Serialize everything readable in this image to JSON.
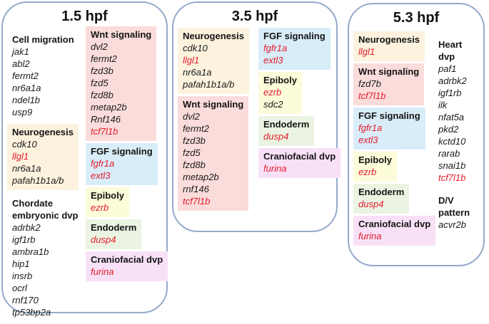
{
  "colors": {
    "red_gene": "#e31b2c",
    "panel_border": "#94abc8",
    "cream": "#fcf2de",
    "pink": "#fadcda",
    "blue": "#d9edf8",
    "yellow": "#fdfcda",
    "green": "#ebf4e2",
    "magenta": "#f8e1f6"
  },
  "panels": [
    {
      "title": "1.5 hpf",
      "columns": [
        [
          {
            "label": "Cell migration",
            "bg": null,
            "genes": [
              {
                "name": "jak1",
                "red": false
              },
              {
                "name": "abl2",
                "red": false
              },
              {
                "name": "fermt2",
                "red": false
              },
              {
                "name": "nr6a1a",
                "red": false
              },
              {
                "name": "ndel1b",
                "red": false
              },
              {
                "name": "usp9",
                "red": false
              }
            ]
          },
          {
            "label": "Neurogenesis",
            "bg": "cream",
            "genes": [
              {
                "name": "cdk10",
                "red": false
              },
              {
                "name": "llgl1",
                "red": true
              },
              {
                "name": "nr6a1a",
                "red": false
              },
              {
                "name": "pafah1b1a/b",
                "red": false
              }
            ]
          },
          {
            "label": "Chordate embryonic dvp",
            "bg": null,
            "genes": [
              {
                "name": "adrbk2",
                "red": false
              },
              {
                "name": "igf1rb",
                "red": false
              },
              {
                "name": "ambra1b",
                "red": false
              },
              {
                "name": "hip1",
                "red": false
              },
              {
                "name": "insrb",
                "red": false
              },
              {
                "name": "ocrl",
                "red": false
              },
              {
                "name": "rnf170",
                "red": false
              },
              {
                "name": "tp53bp2a",
                "red": false
              }
            ]
          }
        ],
        [
          {
            "label": "Wnt signaling",
            "bg": "pink",
            "genes": [
              {
                "name": "dvl2",
                "red": false
              },
              {
                "name": "fermt2",
                "red": false
              },
              {
                "name": "fzd3b",
                "red": false
              },
              {
                "name": "fzd5",
                "red": false
              },
              {
                "name": "fzd8b",
                "red": false
              },
              {
                "name": "metap2b",
                "red": false
              },
              {
                "name": "Rnf146",
                "red": false
              },
              {
                "name": "tcf7l1b",
                "red": true
              }
            ]
          },
          {
            "label": "FGF signaling",
            "bg": "blue",
            "genes": [
              {
                "name": "fgfr1a",
                "red": true
              },
              {
                "name": "extl3",
                "red": true
              }
            ]
          },
          {
            "label": "Epiboly",
            "bg": "yellow",
            "genes": [
              {
                "name": "ezrb",
                "red": true
              }
            ]
          },
          {
            "label": "Endoderm",
            "bg": "green",
            "genes": [
              {
                "name": "dusp4",
                "red": true
              }
            ]
          },
          {
            "label": "Craniofacial dvp",
            "bg": "magenta",
            "genes": [
              {
                "name": "furina",
                "red": true
              }
            ]
          }
        ]
      ]
    },
    {
      "title": "3.5 hpf",
      "columns": [
        [
          {
            "label": "Neurogenesis",
            "bg": "cream",
            "genes": [
              {
                "name": "cdk10",
                "red": false
              },
              {
                "name": "llgl1",
                "red": true
              },
              {
                "name": "nr6a1a",
                "red": false
              },
              {
                "name": "pafah1b1a/b",
                "red": false
              }
            ]
          },
          {
            "label": "Wnt signaling",
            "bg": "pink",
            "genes": [
              {
                "name": "dvl2",
                "red": false
              },
              {
                "name": "fermt2",
                "red": false
              },
              {
                "name": "fzd3b",
                "red": false
              },
              {
                "name": "fzd5",
                "red": false
              },
              {
                "name": "fzd8b",
                "red": false
              },
              {
                "name": "metap2b",
                "red": false
              },
              {
                "name": "rnf146",
                "red": false
              },
              {
                "name": "tcf7l1b",
                "red": true
              }
            ]
          }
        ],
        [
          {
            "label": "FGF signaling",
            "bg": "blue",
            "genes": [
              {
                "name": "fgfr1a",
                "red": true
              },
              {
                "name": "extl3",
                "red": true
              }
            ]
          },
          {
            "label": "Epiboly",
            "bg": "yellow",
            "genes": [
              {
                "name": "ezrb",
                "red": true
              },
              {
                "name": "sdc2",
                "red": false
              }
            ]
          },
          {
            "label": "Endoderm",
            "bg": "green",
            "genes": [
              {
                "name": "dusp4",
                "red": true
              }
            ]
          },
          {
            "label": "Craniofacial dvp",
            "bg": "magenta",
            "genes": [
              {
                "name": "furina",
                "red": true
              }
            ]
          }
        ]
      ]
    },
    {
      "title": "5.3 hpf",
      "columns": [
        [
          {
            "label": "Neurogenesis",
            "bg": "cream",
            "genes": [
              {
                "name": "llgl1",
                "red": true
              }
            ]
          },
          {
            "label": "Wnt signaling",
            "bg": "pink",
            "genes": [
              {
                "name": "fzd7b",
                "red": false
              },
              {
                "name": "tcf7l1b",
                "red": true
              }
            ]
          },
          {
            "label": "FGF signaling",
            "bg": "blue",
            "genes": [
              {
                "name": "fgfr1a",
                "red": true
              },
              {
                "name": "extl3",
                "red": true
              }
            ]
          },
          {
            "label": "Epiboly",
            "bg": "yellow",
            "genes": [
              {
                "name": "ezrb",
                "red": true
              }
            ]
          },
          {
            "label": "Endoderm",
            "bg": "green",
            "genes": [
              {
                "name": "dusp4",
                "red": true
              }
            ]
          },
          {
            "label": "Craniofacial dvp",
            "bg": "magenta",
            "genes": [
              {
                "name": "furina",
                "red": true
              }
            ]
          }
        ],
        [
          {
            "label": "Heart dvp",
            "bg": null,
            "genes": [
              {
                "name": "paf1",
                "red": false
              },
              {
                "name": "adrbk2",
                "red": false
              },
              {
                "name": "igf1rb",
                "red": false
              },
              {
                "name": "ilk",
                "red": false
              },
              {
                "name": "nfat5a",
                "red": false
              },
              {
                "name": "pkd2",
                "red": false
              },
              {
                "name": "kctd10",
                "red": false
              },
              {
                "name": "rarab",
                "red": false
              },
              {
                "name": "snai1b",
                "red": false
              },
              {
                "name": "tcf7l1b",
                "red": true
              }
            ]
          },
          {
            "label": "D/V pattern",
            "bg": null,
            "genes": [
              {
                "name": "acvr2b",
                "red": false
              }
            ]
          }
        ]
      ]
    }
  ]
}
